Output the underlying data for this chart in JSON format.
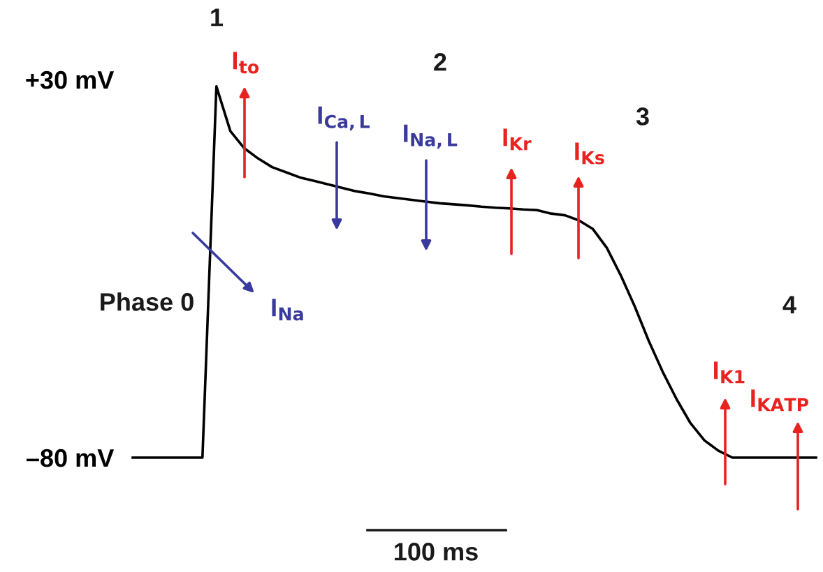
{
  "chart_data": {
    "type": "line",
    "categories": [
      null,
      null,
      null,
      null,
      null,
      null,
      null,
      null,
      null,
      null,
      null,
      null,
      null,
      null,
      null,
      null,
      null,
      null,
      null,
      null,
      null,
      null,
      null,
      null,
      null,
      null,
      null,
      null,
      null,
      null,
      null,
      null,
      null,
      null,
      null,
      null,
      null,
      null,
      null,
      null,
      null,
      null,
      null,
      null,
      null,
      null,
      null,
      null,
      null,
      null
    ],
    "ylim": [
      -80,
      30
    ],
    "yticks": [
      {
        "value": 30,
        "label": "+30 mV"
      },
      {
        "value": -80,
        "label": "–80 mV"
      }
    ],
    "tick_labels": "y",
    "series": [
      {
        "color": "#000000",
        "values": [
          -80,
          -80,
          -80,
          -80,
          -80,
          -80,
          28,
          15,
          10,
          7,
          4.5,
          3,
          1.5,
          0.5,
          -0.5,
          -1.5,
          -2.5,
          -3.2,
          -4,
          -4.5,
          -5,
          -5.5,
          -6,
          -6.3,
          -6.6,
          -7,
          -7.3,
          -7.5,
          -7.8,
          -8,
          -9,
          -9.5,
          -11,
          -13.5,
          -19,
          -27,
          -36,
          -46,
          -55,
          -63,
          -70,
          -75,
          -78,
          -80,
          -80,
          -80,
          -80,
          -80,
          -80,
          -80
        ]
      }
    ],
    "annotations": [
      "1",
      "2",
      "3",
      "4",
      "Phase 0",
      "I$_{to}$",
      "I$_{Ca,L}$",
      "I$_{Na,L}$",
      "I$_{Kr}$",
      "I$_{Ks}$",
      "I$_{Na}$",
      "I$_{K1}$",
      "I$_{KATP}$",
      "100 ms"
    ]
  }
}
